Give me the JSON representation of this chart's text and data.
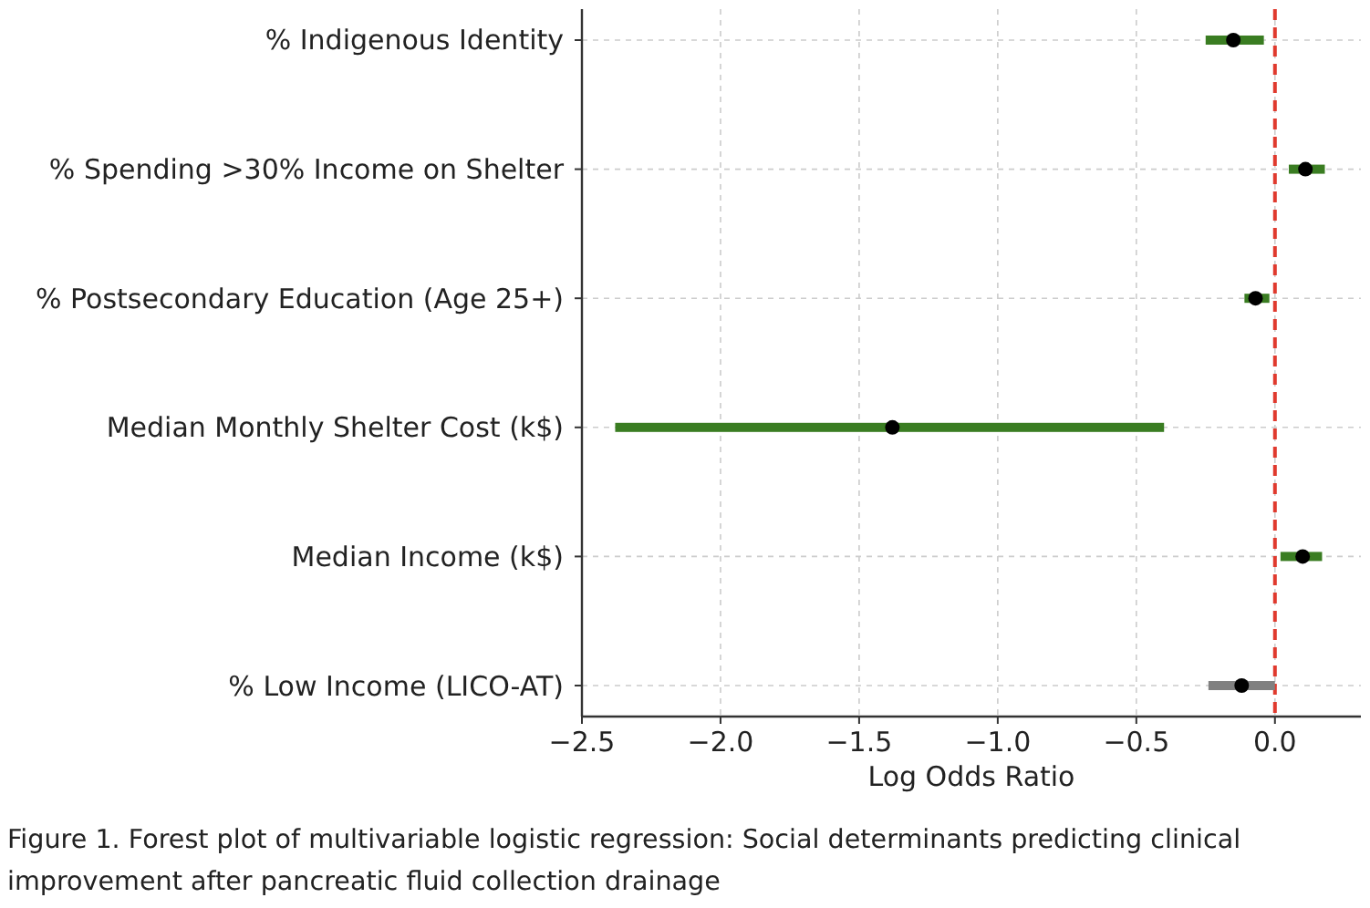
{
  "chart_data": {
    "type": "bar",
    "orientation": "horizontal",
    "xlabel": "Log Odds Ratio",
    "categories": [
      "% Indigenous Identity",
      "% Spending >30% Income on Shelter",
      "% Postsecondary Education (Age 25+)",
      "Median Monthly Shelter Cost (k$)",
      "Median Income (k$)",
      "% Low Income (LICO-AT)"
    ],
    "series": [
      {
        "type": "bar",
        "base": [
          -0.25,
          0.05,
          -0.11,
          -2.38,
          0.02,
          -0.24
        ],
        "values": [
          0.21,
          0.13,
          0.09,
          1.98,
          0.15,
          0.24
        ],
        "colors": [
          "#3a7d22",
          "#3a7d22",
          "#3a7d22",
          "#3a7d22",
          "#3a7d22",
          "#808080"
        ]
      },
      {
        "type": "scatter",
        "x": [
          "% Indigenous Identity",
          "% Spending >30% Income on Shelter",
          "% Postsecondary Education (Age 25+)",
          "Median Monthly Shelter Cost (k$)",
          "Median Income (k$)",
          "% Low Income (LICO-AT)"
        ],
        "values": [
          -0.15,
          0.11,
          -0.07,
          -1.38,
          0.1,
          -0.12
        ],
        "color": "#000000"
      }
    ],
    "xlim": [
      -2.5,
      0.31
    ],
    "xticks": [
      {
        "value": -2.5,
        "label": "−2.5"
      },
      {
        "value": -2,
        "label": "−2.0"
      },
      {
        "value": -1.5,
        "label": "−1.5"
      },
      {
        "value": -1,
        "label": "−1.0"
      },
      {
        "value": -0.5,
        "label": "−0.5"
      },
      {
        "value": 0,
        "label": "0.0"
      }
    ],
    "grid": true,
    "marker": "circle",
    "ref_lines": [
      {
        "axis": "x",
        "value": 0,
        "color": "#e03a2e",
        "line_style": "dashed"
      }
    ],
    "annotations": [
      "Figure 1. Forest plot of multivariable logistic regression: Social determinants predicting clinical improvement after pancreatic fluid collection drainage"
    ]
  }
}
